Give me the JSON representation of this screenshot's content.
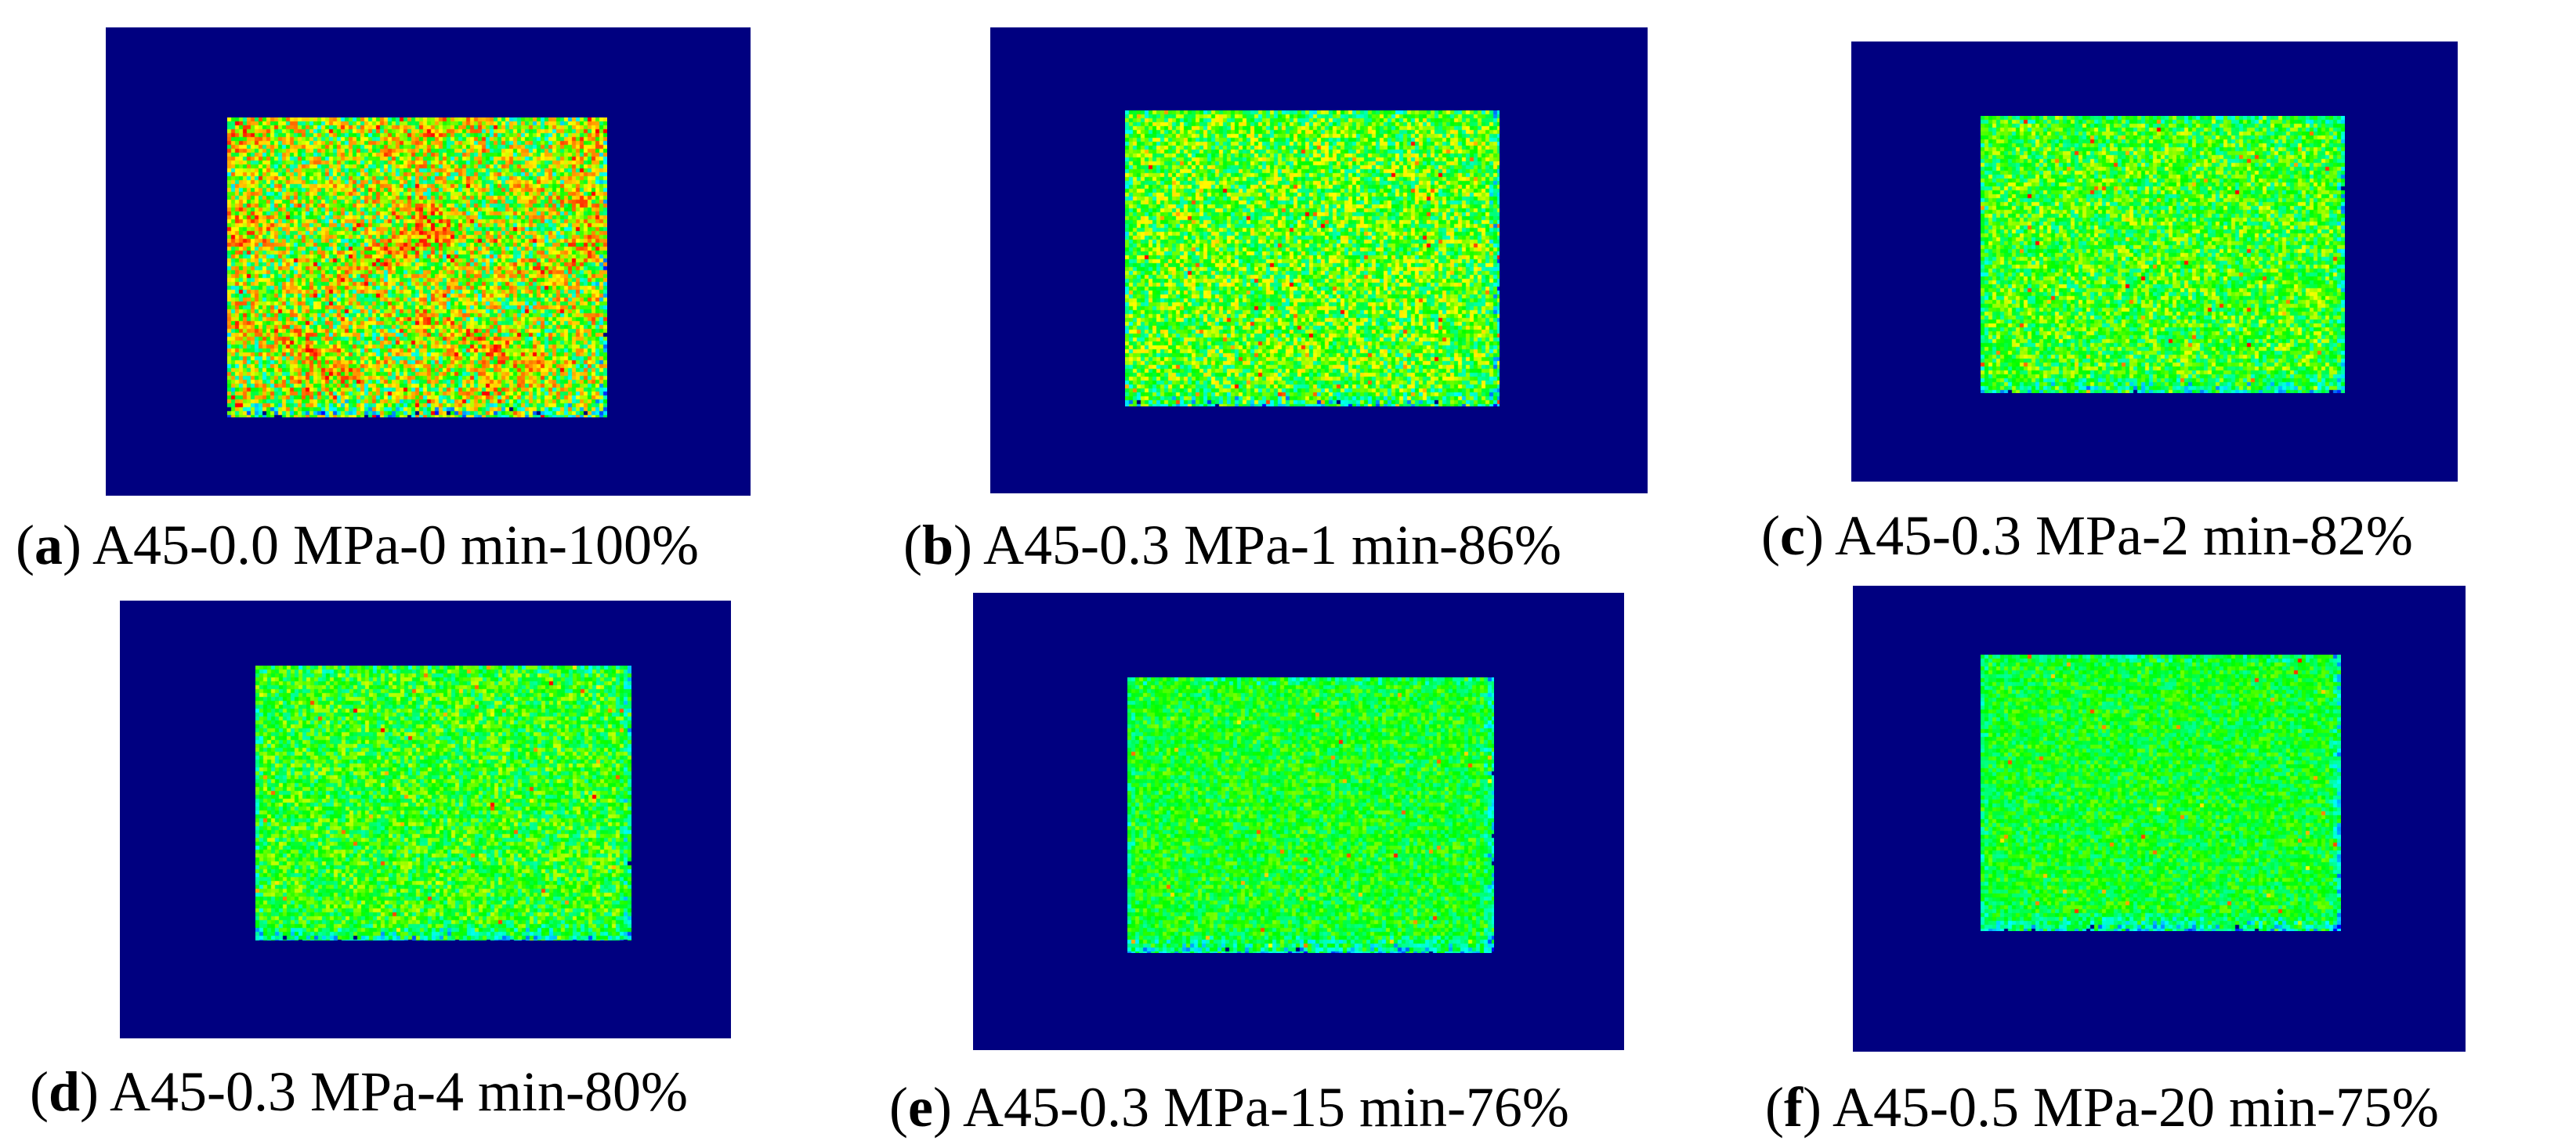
{
  "figure": {
    "background": "#ffffff",
    "colormap": {
      "outside": "#000080",
      "low": "#0000ff",
      "cyan": "#00ffff",
      "green": "#00ff00",
      "yellow": "#ffff00",
      "orange": "#ff8000",
      "high": "#ff0000"
    },
    "panels": [
      {
        "id": "a",
        "letter": "a",
        "label": "A45-0.0 MPa-0 min-100%",
        "uniformity": 1.0
      },
      {
        "id": "b",
        "letter": "b",
        "label": "A45-0.3 MPa-1 min-86%",
        "uniformity": 0.86
      },
      {
        "id": "c",
        "letter": "c",
        "label": "A45-0.3 MPa-2 min-82%",
        "uniformity": 0.82
      },
      {
        "id": "d",
        "letter": "d",
        "label": "A45-0.3 MPa-4 min-80%",
        "uniformity": 0.8
      },
      {
        "id": "e",
        "letter": "e",
        "label": "A45-0.3 MPa-15 min-76%",
        "uniformity": 0.76
      },
      {
        "id": "f",
        "letter": "f",
        "label": "A45-0.5 MPa-20 min-75%",
        "uniformity": 0.75
      }
    ]
  }
}
